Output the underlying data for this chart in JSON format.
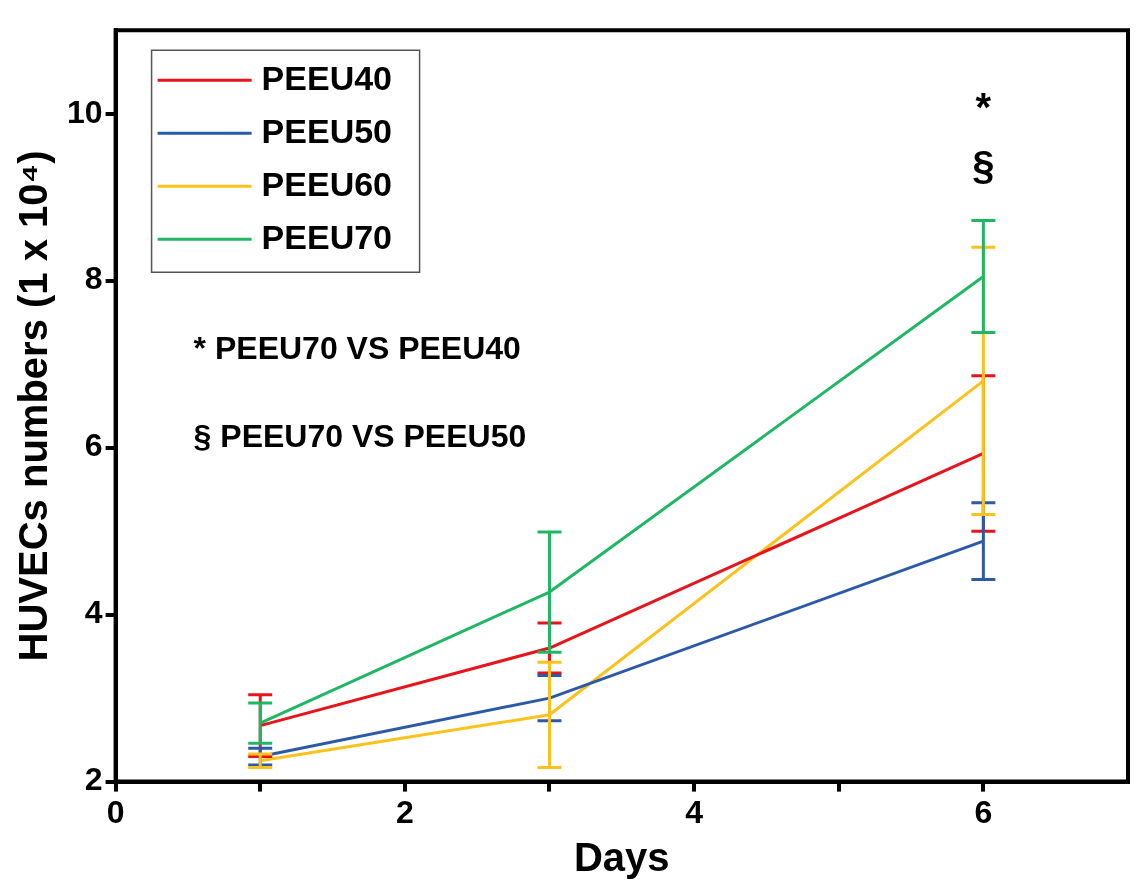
{
  "chart_data": {
    "type": "line",
    "xlabel": "Days",
    "ylabel": "HUVECs numbers (1 x 10⁴)",
    "x": [
      1,
      3,
      6
    ],
    "series": [
      {
        "name": "PEEU40",
        "color": "#e8141c",
        "values": [
          2.67,
          3.6,
          5.93
        ],
        "errors": [
          0.37,
          0.3,
          0.93
        ]
      },
      {
        "name": "PEEU50",
        "color": "#2b5ba8",
        "values": [
          2.3,
          3.0,
          4.88
        ],
        "errors": [
          0.1,
          0.27,
          0.46
        ]
      },
      {
        "name": "PEEU60",
        "color": "#fbc21b",
        "values": [
          2.25,
          2.8,
          6.8
        ],
        "errors": [
          0.08,
          0.63,
          1.6
        ]
      },
      {
        "name": "PEEU70",
        "color": "#1fb764",
        "values": [
          2.7,
          4.27,
          8.05
        ],
        "errors": [
          0.24,
          0.72,
          0.67
        ]
      }
    ],
    "xlim": [
      0,
      7
    ],
    "xticks": [
      0,
      {
        "value": 1,
        "label": null
      },
      2,
      {
        "value": 3,
        "label": null
      },
      4,
      {
        "value": 5,
        "label": null
      },
      6
    ],
    "ylim": [
      2,
      11
    ],
    "yticks": [
      2,
      4,
      6,
      8,
      10
    ],
    "grid": false,
    "legend": "top left",
    "marker": "none",
    "line_style": "solid",
    "annotations": [
      "*",
      "§",
      "* PEEU70 VS PEEU40",
      "§ PEEU70 VS PEEU50"
    ]
  }
}
